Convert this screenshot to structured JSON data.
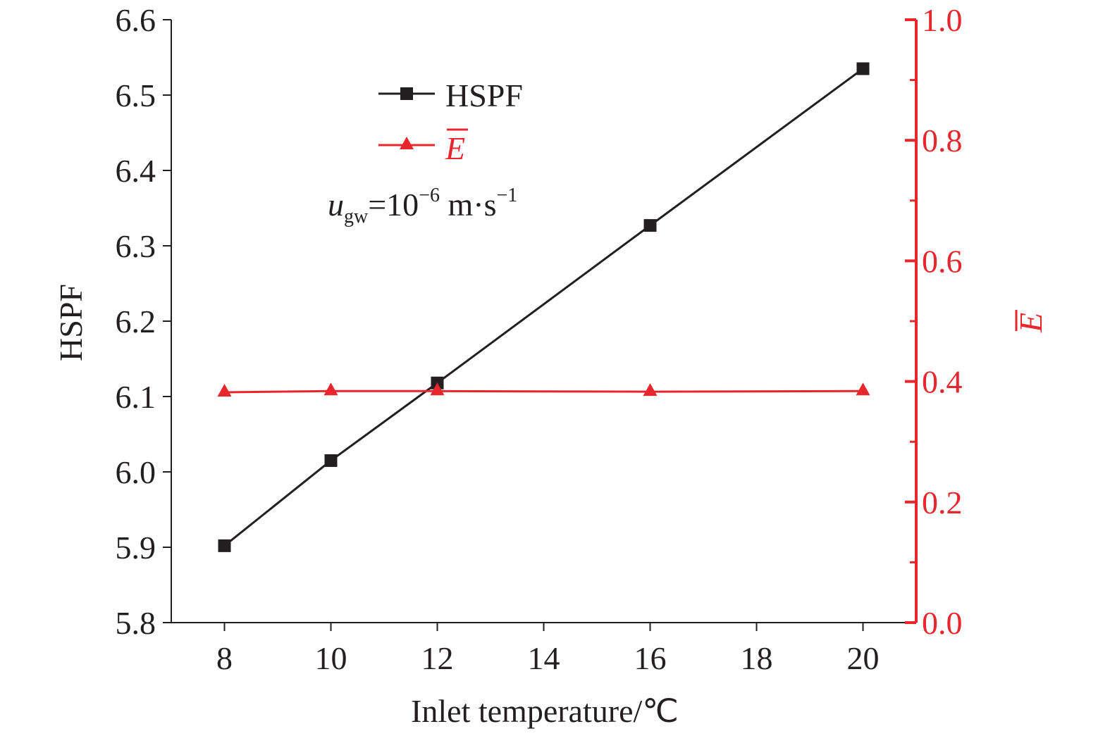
{
  "chart_data": {
    "type": "line",
    "x": [
      8,
      10,
      12,
      16,
      20
    ],
    "series": [
      {
        "name": "HSPF",
        "axis": "left",
        "color": "#231f20",
        "marker": "square",
        "values": [
          5.902,
          6.015,
          6.118,
          6.327,
          6.535
        ]
      },
      {
        "name": "E",
        "axis": "right",
        "color": "#e8262d",
        "marker": "triangle",
        "values": [
          0.382,
          0.384,
          0.384,
          0.383,
          0.384
        ]
      }
    ],
    "xlabel": "Inlet temperature/℃",
    "ylabel_left": "HSPF",
    "ylabel_right": "E",
    "xlim": [
      7,
      21
    ],
    "ylim_left": [
      5.8,
      6.6
    ],
    "ylim_right": [
      0.0,
      1.0
    ],
    "xticks": [
      "8",
      "10",
      "12",
      "14",
      "16",
      "18",
      "20"
    ],
    "yticks_left": [
      "5.8",
      "5.9",
      "6.0",
      "6.1",
      "6.2",
      "6.3",
      "6.4",
      "6.5",
      "6.6"
    ],
    "yticks_right": [
      "0.0",
      "0.2",
      "0.4",
      "0.6",
      "0.8",
      "1.0"
    ],
    "annotation": {
      "var": "u",
      "sub": "gw",
      "eq": "=10",
      "exp": "−6",
      "unit": " m·s",
      "unit_exp": "−1"
    },
    "legend_position": "top-left",
    "grid": false
  }
}
